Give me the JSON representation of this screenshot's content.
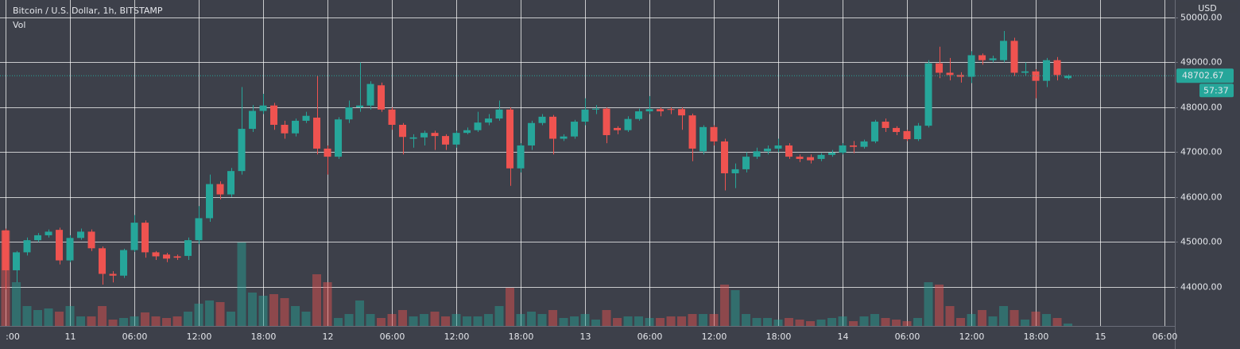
{
  "chart_data": {
    "type": "candlestick",
    "title": "Bitcoin / U.S. Dollar, 1h, BITSTAMP",
    "volume_label": "Vol",
    "currency": "USD",
    "up_color": "#26a69a",
    "down_color": "#ef5350",
    "x": [
      -6,
      -5,
      -4,
      -3,
      -2,
      -1,
      0,
      1,
      2,
      3,
      4,
      5,
      6,
      7,
      8,
      9,
      10,
      11,
      12,
      13,
      14,
      15,
      16,
      17,
      18,
      19,
      20,
      21,
      22,
      23,
      24,
      25,
      26,
      27,
      28,
      29,
      30,
      31,
      32,
      33,
      34,
      35,
      36,
      37,
      38,
      39,
      40,
      41,
      42,
      43,
      44,
      45,
      46,
      47,
      48,
      49,
      50,
      51,
      52,
      53,
      54,
      55,
      56,
      57,
      58,
      59,
      60,
      61,
      62,
      63,
      64,
      65,
      66,
      67,
      68,
      69,
      70,
      71,
      72,
      73,
      74,
      75,
      76,
      77,
      78,
      79,
      80,
      81,
      82,
      83,
      84,
      85,
      86,
      87,
      88,
      89,
      90,
      91,
      92,
      93
    ],
    "open": [
      45260,
      44370,
      44770,
      45040,
      45150,
      45270,
      44590,
      45090,
      45230,
      44860,
      44290,
      44250,
      44820,
      45430,
      44770,
      44720,
      44680,
      44690,
      45040,
      45530,
      46290,
      46060,
      46580,
      47520,
      47920,
      48040,
      47610,
      47420,
      47700,
      47770,
      47080,
      46900,
      47730,
      48000,
      48040,
      48490,
      47950,
      47610,
      47300,
      47330,
      47430,
      47360,
      47170,
      47430,
      47490,
      47660,
      47750,
      47950,
      46640,
      47150,
      47650,
      47790,
      47300,
      47350,
      47680,
      47950,
      47970,
      47540,
      47490,
      47740,
      47910,
      47960,
      47960,
      47960,
      47820,
      47020,
      47560,
      47240,
      46530,
      46620,
      46900,
      47020,
      47080,
      47150,
      46900,
      46890,
      46850,
      46940,
      46990,
      47150,
      47120,
      47240,
      47680,
      47540,
      47470,
      47290,
      47590,
      48980,
      48770,
      48720,
      48680,
      49160,
      49050,
      49050,
      49480,
      48770,
      48800,
      48590,
      49050,
      48650
    ],
    "high": [
      45300,
      44800,
      45100,
      45200,
      45280,
      45320,
      45150,
      45300,
      45280,
      44900,
      44350,
      44850,
      45600,
      45480,
      44800,
      44760,
      44720,
      45100,
      45800,
      46500,
      46350,
      46650,
      48450,
      48050,
      48300,
      48100,
      47700,
      47750,
      47900,
      48700,
      47150,
      47780,
      48150,
      49000,
      48580,
      48550,
      48000,
      47650,
      47400,
      47480,
      47480,
      47400,
      47480,
      47550,
      47900,
      47850,
      48150,
      48000,
      47200,
      47700,
      47850,
      47830,
      47400,
      47720,
      48200,
      48050,
      48000,
      47580,
      47800,
      47970,
      48250,
      48000,
      48000,
      48000,
      47860,
      47600,
      47600,
      47300,
      46750,
      47000,
      47100,
      47150,
      47300,
      47200,
      46950,
      46950,
      46980,
      47050,
      47200,
      47250,
      47280,
      47720,
      47750,
      47580,
      47500,
      47650,
      49050,
      49350,
      49100,
      48780,
      49250,
      49200,
      49150,
      49700,
      49550,
      49000,
      48850,
      49100,
      49120,
      48730
    ],
    "low": [
      43950,
      44100,
      44700,
      45000,
      45100,
      44500,
      44550,
      45050,
      44800,
      44050,
      44100,
      44200,
      44780,
      44650,
      44600,
      44550,
      44600,
      44600,
      44950,
      45450,
      45950,
      46000,
      46500,
      47450,
      47850,
      47500,
      47300,
      47350,
      47650,
      46950,
      46500,
      46850,
      47650,
      47900,
      47950,
      47900,
      47500,
      46950,
      47100,
      47150,
      47050,
      47050,
      47100,
      47400,
      47450,
      47600,
      47700,
      46250,
      46550,
      47050,
      47600,
      46950,
      47250,
      47300,
      47600,
      47850,
      47200,
      47400,
      47450,
      47700,
      47850,
      47800,
      47850,
      47500,
      46800,
      46950,
      47150,
      46150,
      46200,
      46550,
      46850,
      46950,
      47000,
      46850,
      46780,
      46750,
      46800,
      46900,
      46950,
      46980,
      47080,
      47200,
      47450,
      47380,
      47250,
      47250,
      47550,
      48650,
      48600,
      48550,
      48540,
      48950,
      49000,
      49000,
      48700,
      48700,
      48200,
      48450,
      48600,
      48620
    ],
    "close": [
      44370,
      44770,
      45040,
      45150,
      45230,
      44590,
      45090,
      45230,
      44860,
      44290,
      44250,
      44820,
      45430,
      44770,
      44680,
      44630,
      44650,
      45040,
      45530,
      46290,
      46060,
      46580,
      47520,
      47920,
      48040,
      47610,
      47420,
      47700,
      47810,
      47080,
      46900,
      47730,
      48000,
      48040,
      48520,
      47950,
      47610,
      47340,
      47330,
      47430,
      47360,
      47170,
      47430,
      47490,
      47660,
      47750,
      47950,
      46640,
      47150,
      47650,
      47790,
      47300,
      47350,
      47680,
      47950,
      47970,
      47380,
      47490,
      47740,
      47910,
      47960,
      47910,
      47950,
      47820,
      47080,
      47560,
      47240,
      46530,
      46620,
      46900,
      47020,
      47080,
      47150,
      46900,
      46850,
      46820,
      46940,
      46990,
      47150,
      47120,
      47240,
      47680,
      47540,
      47450,
      47290,
      47590,
      48980,
      48770,
      48720,
      48680,
      49160,
      49050,
      49090,
      49480,
      48770,
      48800,
      48590,
      49050,
      48720,
      48702.67
    ],
    "volume": [
      120,
      55,
      25,
      20,
      22,
      18,
      25,
      12,
      12,
      25,
      8,
      10,
      12,
      17,
      12,
      10,
      12,
      18,
      28,
      32,
      30,
      18,
      105,
      42,
      38,
      40,
      35,
      25,
      18,
      65,
      55,
      10,
      15,
      32,
      15,
      10,
      15,
      20,
      12,
      15,
      18,
      12,
      15,
      12,
      12,
      15,
      25,
      48,
      15,
      18,
      15,
      20,
      10,
      12,
      15,
      8,
      20,
      10,
      12,
      12,
      10,
      10,
      12,
      12,
      15,
      15,
      15,
      52,
      45,
      15,
      10,
      10,
      8,
      10,
      8,
      6,
      8,
      10,
      12,
      6,
      12,
      15,
      10,
      8,
      6,
      10,
      55,
      52,
      25,
      10,
      15,
      20,
      12,
      25,
      20,
      8,
      18,
      15,
      10,
      3
    ],
    "vlim": [
      0,
      410
    ],
    "xlim": [
      -6.52,
      102.96
    ],
    "xticks": [
      {
        "value": -6,
        "label": ":00"
      },
      {
        "value": 0,
        "label": "11"
      },
      {
        "value": 6,
        "label": "06:00"
      },
      {
        "value": 12,
        "label": "12:00"
      },
      {
        "value": 18,
        "label": "18:00"
      },
      {
        "value": 24,
        "label": "12"
      },
      {
        "value": 30,
        "label": "06:00"
      },
      {
        "value": 36,
        "label": "12:00"
      },
      {
        "value": 42,
        "label": "18:00"
      },
      {
        "value": 48,
        "label": "13"
      },
      {
        "value": 54,
        "label": "06:00"
      },
      {
        "value": 60,
        "label": "12:00"
      },
      {
        "value": 66,
        "label": "18:00"
      },
      {
        "value": 72,
        "label": "14"
      },
      {
        "value": 78,
        "label": "06:00"
      },
      {
        "value": 84,
        "label": "12:00"
      },
      {
        "value": 90,
        "label": "18:00"
      },
      {
        "value": 96,
        "label": "15"
      },
      {
        "value": 102,
        "label": "06:00"
      }
    ],
    "ylim": [
      43130,
      50390
    ],
    "yticks": [
      {
        "value": 44000,
        "label": "44000.00"
      },
      {
        "value": 45000,
        "label": "45000.00"
      },
      {
        "value": 46000,
        "label": "46000.00"
      },
      {
        "value": 47000,
        "label": "47000.00"
      },
      {
        "value": 48000,
        "label": "48000.00"
      },
      {
        "value": 49000,
        "label": "49000.00"
      },
      {
        "value": 50000,
        "label": "50000.00"
      }
    ],
    "last_price": 48702.67,
    "countdown": "57:37",
    "grid": true
  }
}
